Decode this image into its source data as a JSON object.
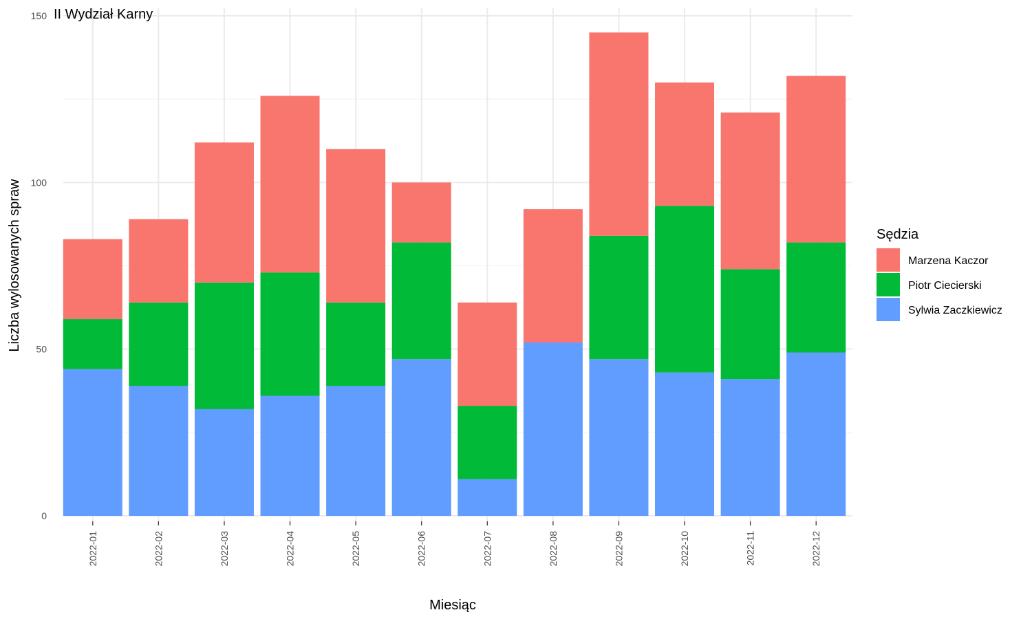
{
  "chart_data": {
    "type": "bar",
    "stacked": true,
    "title": "II Wydział Karny",
    "xlabel": "Miesiąc",
    "ylabel": "Liczba wylosowanych spraw",
    "ylim": [
      0,
      150
    ],
    "yticks": [
      0,
      50,
      100,
      150
    ],
    "grid": true,
    "legend": {
      "title": "Sędzia",
      "position": "right"
    },
    "categories": [
      "2022-01",
      "2022-02",
      "2022-03",
      "2022-04",
      "2022-05",
      "2022-06",
      "2022-07",
      "2022-08",
      "2022-09",
      "2022-10",
      "2022-11",
      "2022-12"
    ],
    "series": [
      {
        "name": "Sylwia Zaczkiewicz",
        "color": "#619CFF",
        "values": [
          44,
          39,
          32,
          36,
          39,
          47,
          11,
          52,
          47,
          43,
          41,
          49
        ]
      },
      {
        "name": "Piotr Ciecierski",
        "color": "#00BA38",
        "values": [
          15,
          25,
          38,
          37,
          25,
          35,
          22,
          0,
          37,
          50,
          33,
          33
        ]
      },
      {
        "name": "Marzena Kaczor",
        "color": "#F8766D",
        "values": [
          24,
          25,
          42,
          53,
          46,
          18,
          31,
          40,
          61,
          37,
          47,
          50
        ]
      }
    ],
    "legend_order": [
      "Marzena Kaczor",
      "Piotr Ciecierski",
      "Sylwia Zaczkiewicz"
    ]
  }
}
